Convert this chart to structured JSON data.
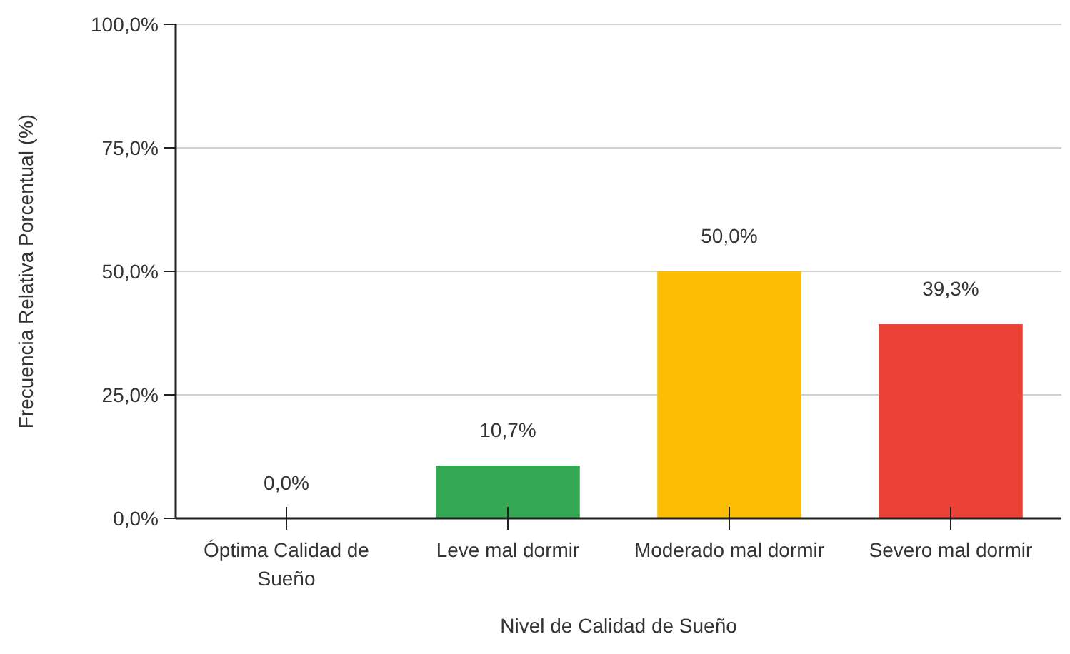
{
  "chart_data": {
    "type": "bar",
    "xlabel": "Nivel de Calidad de Sueño",
    "ylabel": "Frecuencia Relativa Porcentual (%)",
    "categories": [
      "Óptima Calidad de Sueño",
      "Leve mal dormir",
      "Moderado mal dormir",
      "Severo mal dormir"
    ],
    "values": [
      0,
      10.7,
      50,
      39.3
    ],
    "colors": [
      "#4285f4",
      "#34a853",
      "#fbbc04",
      "#ea4335"
    ],
    "value_labels": [
      "0,0%",
      "10,7%",
      "50,0%",
      "39,3%"
    ],
    "ylim": [
      0,
      100
    ],
    "yticks": [
      {
        "value": 0,
        "label": "0,0%"
      },
      {
        "value": 25,
        "label": "25,0%"
      },
      {
        "value": 50,
        "label": "50,0%"
      },
      {
        "value": 75,
        "label": "75,0%"
      },
      {
        "value": 100,
        "label": "100,0%"
      }
    ],
    "grid": "y"
  }
}
